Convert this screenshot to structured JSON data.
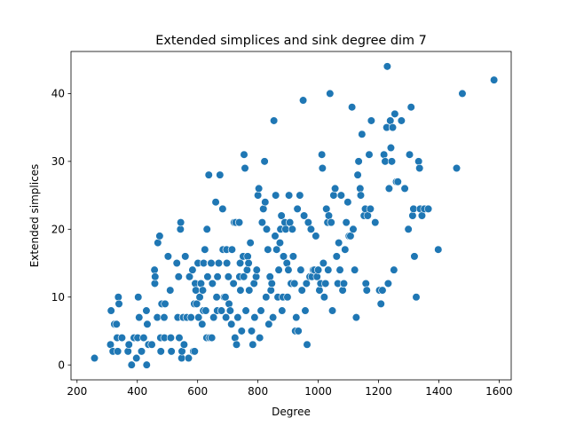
{
  "chart_data": {
    "type": "scatter",
    "title": "Extended simplices and sink degree dim 7",
    "xlabel": "Degree",
    "ylabel": "Extended simplices",
    "xlim": [
      180,
      1640
    ],
    "ylim": [
      -2.2,
      46.2
    ],
    "xticks": [
      200,
      400,
      600,
      800,
      1000,
      1200,
      1400,
      1600
    ],
    "yticks": [
      0,
      10,
      20,
      30,
      40
    ],
    "grid": false,
    "marker_color": "#1f77b4",
    "marker_edge": "#ffffff",
    "series": [
      {
        "points": [
          [
            258,
            1
          ],
          [
            311,
            3
          ],
          [
            313,
            8
          ],
          [
            319,
            2
          ],
          [
            324,
            6
          ],
          [
            331,
            6
          ],
          [
            335,
            2
          ],
          [
            333,
            4
          ],
          [
            337,
            10
          ],
          [
            339,
            9
          ],
          [
            349,
            4
          ],
          [
            369,
            2
          ],
          [
            372,
            3
          ],
          [
            381,
            0
          ],
          [
            389,
            4
          ],
          [
            397,
            1
          ],
          [
            401,
            4
          ],
          [
            403,
            10
          ],
          [
            406,
            7
          ],
          [
            414,
            2
          ],
          [
            421,
            4
          ],
          [
            430,
            8
          ],
          [
            433,
            6
          ],
          [
            431,
            0
          ],
          [
            437,
            3
          ],
          [
            448,
            3
          ],
          [
            457,
            14
          ],
          [
            458,
            12
          ],
          [
            459,
            13
          ],
          [
            466,
            7
          ],
          [
            468,
            18
          ],
          [
            474,
            19
          ],
          [
            477,
            4
          ],
          [
            478,
            2
          ],
          [
            481,
            9
          ],
          [
            489,
            7
          ],
          [
            490,
            4
          ],
          [
            492,
            9
          ],
          [
            502,
            16
          ],
          [
            509,
            11
          ],
          [
            511,
            4
          ],
          [
            513,
            2
          ],
          [
            534,
            7
          ],
          [
            531,
            15
          ],
          [
            537,
            13
          ],
          [
            539,
            4
          ],
          [
            543,
            20
          ],
          [
            544,
            21
          ],
          [
            547,
            1
          ],
          [
            548,
            2
          ],
          [
            552,
            7
          ],
          [
            555,
            3
          ],
          [
            559,
            16
          ],
          [
            564,
            7
          ],
          [
            570,
            1
          ],
          [
            573,
            13
          ],
          [
            578,
            7
          ],
          [
            583,
            14
          ],
          [
            586,
            2
          ],
          [
            589,
            9
          ],
          [
            590,
            2
          ],
          [
            592,
            12
          ],
          [
            594,
            11
          ],
          [
            597,
            9
          ],
          [
            601,
            15
          ],
          [
            603,
            7
          ],
          [
            607,
            10
          ],
          [
            611,
            12
          ],
          [
            615,
            6
          ],
          [
            617,
            11
          ],
          [
            619,
            8
          ],
          [
            620,
            15
          ],
          [
            624,
            17
          ],
          [
            627,
            8
          ],
          [
            630,
            4
          ],
          [
            631,
            20
          ],
          [
            633,
            13
          ],
          [
            637,
            28
          ],
          [
            640,
            4
          ],
          [
            643,
            15
          ],
          [
            645,
            15
          ],
          [
            647,
            4
          ],
          [
            649,
            12
          ],
          [
            653,
            7
          ],
          [
            660,
            24
          ],
          [
            663,
            10
          ],
          [
            665,
            8
          ],
          [
            666,
            13
          ],
          [
            670,
            15
          ],
          [
            674,
            28
          ],
          [
            679,
            8
          ],
          [
            683,
            23
          ],
          [
            684,
            17
          ],
          [
            688,
            10
          ],
          [
            692,
            10
          ],
          [
            694,
            7
          ],
          [
            696,
            17
          ],
          [
            697,
            15
          ],
          [
            702,
            13
          ],
          [
            704,
            9
          ],
          [
            708,
            8
          ],
          [
            712,
            6
          ],
          [
            714,
            17
          ],
          [
            719,
            12
          ],
          [
            721,
            21
          ],
          [
            724,
            4
          ],
          [
            726,
            21
          ],
          [
            729,
            3
          ],
          [
            733,
            7
          ],
          [
            738,
            21
          ],
          [
            739,
            13
          ],
          [
            741,
            15
          ],
          [
            742,
            11
          ],
          [
            746,
            5
          ],
          [
            751,
            16
          ],
          [
            753,
            13
          ],
          [
            754,
            31
          ],
          [
            757,
            29
          ],
          [
            760,
            8
          ],
          [
            764,
            14
          ],
          [
            766,
            16
          ],
          [
            769,
            15
          ],
          [
            771,
            11
          ],
          [
            775,
            18
          ],
          [
            779,
            5
          ],
          [
            783,
            3
          ],
          [
            787,
            12
          ],
          [
            789,
            7
          ],
          [
            794,
            13
          ],
          [
            796,
            14
          ],
          [
            800,
            25
          ],
          [
            803,
            26
          ],
          [
            806,
            4
          ],
          [
            810,
            8
          ],
          [
            814,
            21
          ],
          [
            818,
            23
          ],
          [
            822,
            30
          ],
          [
            824,
            24
          ],
          [
            827,
            10
          ],
          [
            829,
            20
          ],
          [
            833,
            17
          ],
          [
            836,
            6
          ],
          [
            840,
            13
          ],
          [
            843,
            11
          ],
          [
            846,
            12
          ],
          [
            850,
            7
          ],
          [
            853,
            36
          ],
          [
            857,
            19
          ],
          [
            859,
            25
          ],
          [
            862,
            17
          ],
          [
            866,
            10
          ],
          [
            869,
            14
          ],
          [
            873,
            18
          ],
          [
            875,
            20
          ],
          [
            878,
            22
          ],
          [
            880,
            8
          ],
          [
            883,
            10
          ],
          [
            885,
            16
          ],
          [
            889,
            21
          ],
          [
            892,
            20
          ],
          [
            896,
            15
          ],
          [
            898,
            10
          ],
          [
            901,
            14
          ],
          [
            903,
            25
          ],
          [
            906,
            21
          ],
          [
            910,
            12
          ],
          [
            914,
            20
          ],
          [
            917,
            16
          ],
          [
            921,
            12
          ],
          [
            924,
            5
          ],
          [
            927,
            7
          ],
          [
            931,
            23
          ],
          [
            934,
            5
          ],
          [
            939,
            25
          ],
          [
            942,
            14
          ],
          [
            946,
            11
          ],
          [
            950,
            39
          ],
          [
            953,
            22
          ],
          [
            957,
            8
          ],
          [
            961,
            12
          ],
          [
            963,
            3
          ],
          [
            967,
            21
          ],
          [
            972,
            13
          ],
          [
            976,
            20
          ],
          [
            979,
            13
          ],
          [
            983,
            14
          ],
          [
            987,
            14
          ],
          [
            992,
            19
          ],
          [
            996,
            13
          ],
          [
            1000,
            14
          ],
          [
            1004,
            11
          ],
          [
            1008,
            12
          ],
          [
            1012,
            31
          ],
          [
            1014,
            29
          ],
          [
            1017,
            15
          ],
          [
            1020,
            10
          ],
          [
            1024,
            12
          ],
          [
            1027,
            23
          ],
          [
            1031,
            21
          ],
          [
            1033,
            14
          ],
          [
            1035,
            22
          ],
          [
            1039,
            40
          ],
          [
            1043,
            21
          ],
          [
            1047,
            8
          ],
          [
            1051,
            25
          ],
          [
            1056,
            26
          ],
          [
            1061,
            16
          ],
          [
            1065,
            12
          ],
          [
            1068,
            18
          ],
          [
            1072,
            14
          ],
          [
            1076,
            25
          ],
          [
            1081,
            11
          ],
          [
            1085,
            12
          ],
          [
            1089,
            17
          ],
          [
            1093,
            21
          ],
          [
            1098,
            24
          ],
          [
            1102,
            19
          ],
          [
            1107,
            19
          ],
          [
            1112,
            38
          ],
          [
            1116,
            20
          ],
          [
            1121,
            14
          ],
          [
            1126,
            7
          ],
          [
            1131,
            28
          ],
          [
            1134,
            30
          ],
          [
            1139,
            26
          ],
          [
            1141,
            25
          ],
          [
            1145,
            34
          ],
          [
            1152,
            22
          ],
          [
            1156,
            23
          ],
          [
            1158,
            12
          ],
          [
            1161,
            11
          ],
          [
            1164,
            22
          ],
          [
            1169,
            31
          ],
          [
            1173,
            23
          ],
          [
            1176,
            36
          ],
          [
            1189,
            21
          ],
          [
            1203,
            11
          ],
          [
            1208,
            9
          ],
          [
            1213,
            11
          ],
          [
            1218,
            31
          ],
          [
            1222,
            30
          ],
          [
            1227,
            35
          ],
          [
            1229,
            44
          ],
          [
            1232,
            12
          ],
          [
            1235,
            26
          ],
          [
            1239,
            36
          ],
          [
            1241,
            32
          ],
          [
            1244,
            30
          ],
          [
            1247,
            35
          ],
          [
            1251,
            14
          ],
          [
            1254,
            37
          ],
          [
            1259,
            27
          ],
          [
            1264,
            27
          ],
          [
            1276,
            36
          ],
          [
            1287,
            26
          ],
          [
            1299,
            20
          ],
          [
            1303,
            31
          ],
          [
            1308,
            38
          ],
          [
            1313,
            22
          ],
          [
            1316,
            23
          ],
          [
            1319,
            16
          ],
          [
            1325,
            10
          ],
          [
            1333,
            30
          ],
          [
            1336,
            29
          ],
          [
            1338,
            23
          ],
          [
            1344,
            22
          ],
          [
            1352,
            23
          ],
          [
            1365,
            23
          ],
          [
            1398,
            17
          ],
          [
            1459,
            29
          ],
          [
            1478,
            40
          ],
          [
            1583,
            42
          ]
        ]
      }
    ]
  }
}
